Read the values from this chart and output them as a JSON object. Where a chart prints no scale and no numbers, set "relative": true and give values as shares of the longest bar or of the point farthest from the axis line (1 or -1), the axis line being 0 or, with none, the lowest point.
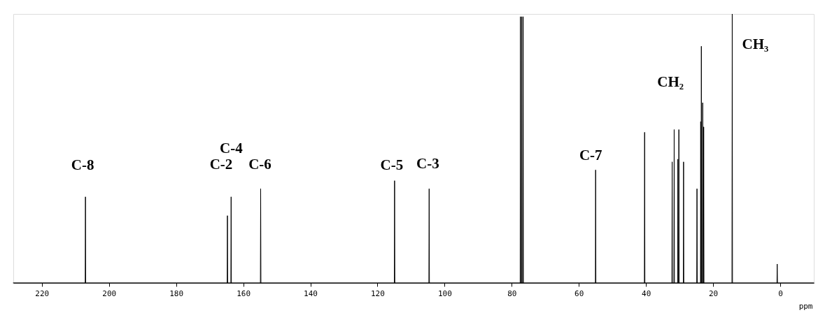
{
  "chart_data": {
    "type": "line",
    "relative": true,
    "xlabel": "ppm",
    "xlim": [
      228.5,
      -10
    ],
    "xticks": [
      220,
      200,
      180,
      160,
      140,
      120,
      100,
      80,
      60,
      40,
      20,
      0
    ],
    "grid": false,
    "marker": "none",
    "line_style": "solid",
    "series": [
      {
        "color": "#000000",
        "x": [
          228.5,
          207.08,
          207.0,
          206.92,
          164.78,
          164.7,
          164.62,
          163.68,
          163.6,
          163.52,
          154.88,
          154.8,
          154.72,
          114.98,
          114.9,
          114.82,
          104.68,
          104.6,
          104.52,
          77.48,
          77.4,
          77.32,
          77.08,
          77.0,
          76.92,
          76.68,
          76.6,
          76.52,
          55.08,
          55.0,
          54.92,
          40.48,
          40.4,
          40.32,
          32.28,
          32.2,
          32.12,
          31.68,
          31.6,
          31.52,
          30.58,
          30.5,
          30.42,
          30.28,
          30.2,
          30.12,
          28.88,
          28.8,
          28.72,
          24.88,
          24.8,
          24.72,
          23.76,
          23.7,
          23.64,
          23.56,
          23.5,
          23.44,
          23.18,
          23.1,
          23.02,
          22.88,
          22.8,
          22.72,
          14.38,
          14.3,
          14.22,
          0.98,
          0.9,
          0.82,
          -10
        ],
        "values": [
          0,
          0,
          0.32,
          0,
          0,
          0.25,
          0,
          0,
          0.32,
          0,
          0,
          0.35,
          0,
          0,
          0.38,
          0,
          0,
          0.35,
          0,
          0,
          0.99,
          0,
          0,
          0.99,
          0,
          0,
          0.99,
          0,
          0,
          0.42,
          0,
          0,
          0.56,
          0,
          0,
          0.45,
          0,
          0,
          0.57,
          0,
          0,
          0.46,
          0,
          0,
          0.57,
          0,
          0,
          0.45,
          0,
          0,
          0.35,
          0,
          0,
          0.6,
          0,
          0,
          0.88,
          0,
          0,
          0.67,
          0,
          0,
          0.58,
          0,
          0,
          1,
          0,
          0,
          0.07,
          0,
          0
        ]
      }
    ],
    "annotations": [
      {
        "text": "C-8",
        "x": 207.0,
        "y": 0.32
      },
      {
        "text": "C-4",
        "x": 163.6,
        "y": 0.32
      },
      {
        "text": "C-2",
        "x": 164.7,
        "y": 0.25
      },
      {
        "text": "C-6",
        "x": 154.8,
        "y": 0.35
      },
      {
        "text": "C-5",
        "x": 114.9,
        "y": 0.38
      },
      {
        "text": "C-3",
        "x": 104.6,
        "y": 0.35
      },
      {
        "text": "C-7",
        "x": 55.0,
        "y": 0.42
      },
      {
        "text": "CH₂",
        "x": 30.2,
        "y": 0.57
      },
      {
        "text": "CH₃",
        "x": 14.3,
        "y": 1
      }
    ]
  }
}
